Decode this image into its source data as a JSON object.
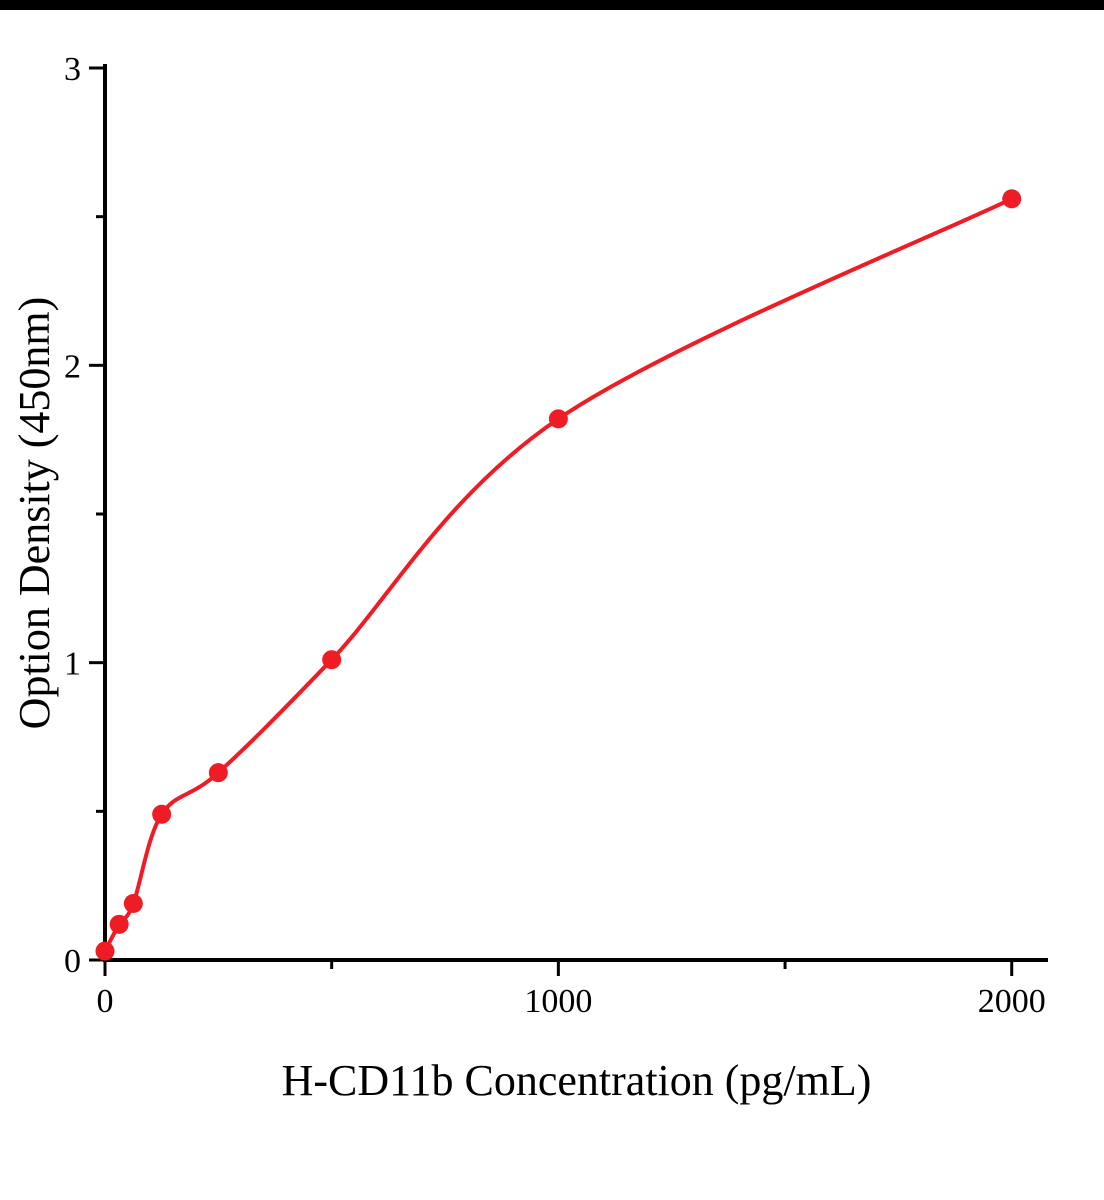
{
  "page": {
    "background": "#ffffff"
  },
  "chart_data": {
    "type": "scatter",
    "title": "",
    "xlabel": "H-CD11b Concentration (pg/mL)",
    "ylabel": "Option Density (450nm)",
    "x": [
      0,
      31.25,
      62.5,
      125,
      250,
      500,
      1000,
      2000
    ],
    "y": [
      0.03,
      0.12,
      0.19,
      0.49,
      0.63,
      1.01,
      1.82,
      2.56
    ],
    "curve": "smooth-through-points",
    "xlim": [
      0,
      2080
    ],
    "ylim": [
      0,
      3
    ],
    "x_ticks_major": {
      "values": [
        0,
        1000,
        2000
      ],
      "labels": [
        "0",
        "1000",
        "2000"
      ]
    },
    "x_ticks_minor": [
      500,
      1500
    ],
    "y_ticks_major": {
      "values": [
        0,
        1,
        2,
        3
      ],
      "labels": [
        "0",
        "1",
        "2",
        "3"
      ]
    },
    "y_ticks_minor": [
      0.5,
      1.5,
      2.5
    ],
    "point_color": "#ee1c25",
    "line_color": "#ee1c25",
    "axis_color": "#000000",
    "grid": false,
    "legend": null
  }
}
